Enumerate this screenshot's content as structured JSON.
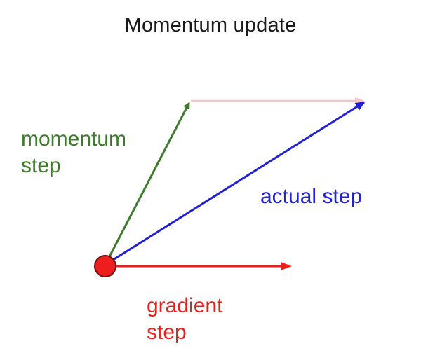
{
  "title": "Momentum update",
  "labels": {
    "momentum": [
      "momentum",
      "step"
    ],
    "actual": [
      "actual step"
    ],
    "gradient": [
      "gradient",
      "step"
    ]
  },
  "colors": {
    "momentum": "#3d7a2b",
    "actual": "#2020d6",
    "gradient": "#e8201c",
    "ghost": "#f6c4c4",
    "origin_fill": "#ef1e1e",
    "origin_stroke": "#7a0f0f",
    "title": "#1a1a1a"
  }
}
